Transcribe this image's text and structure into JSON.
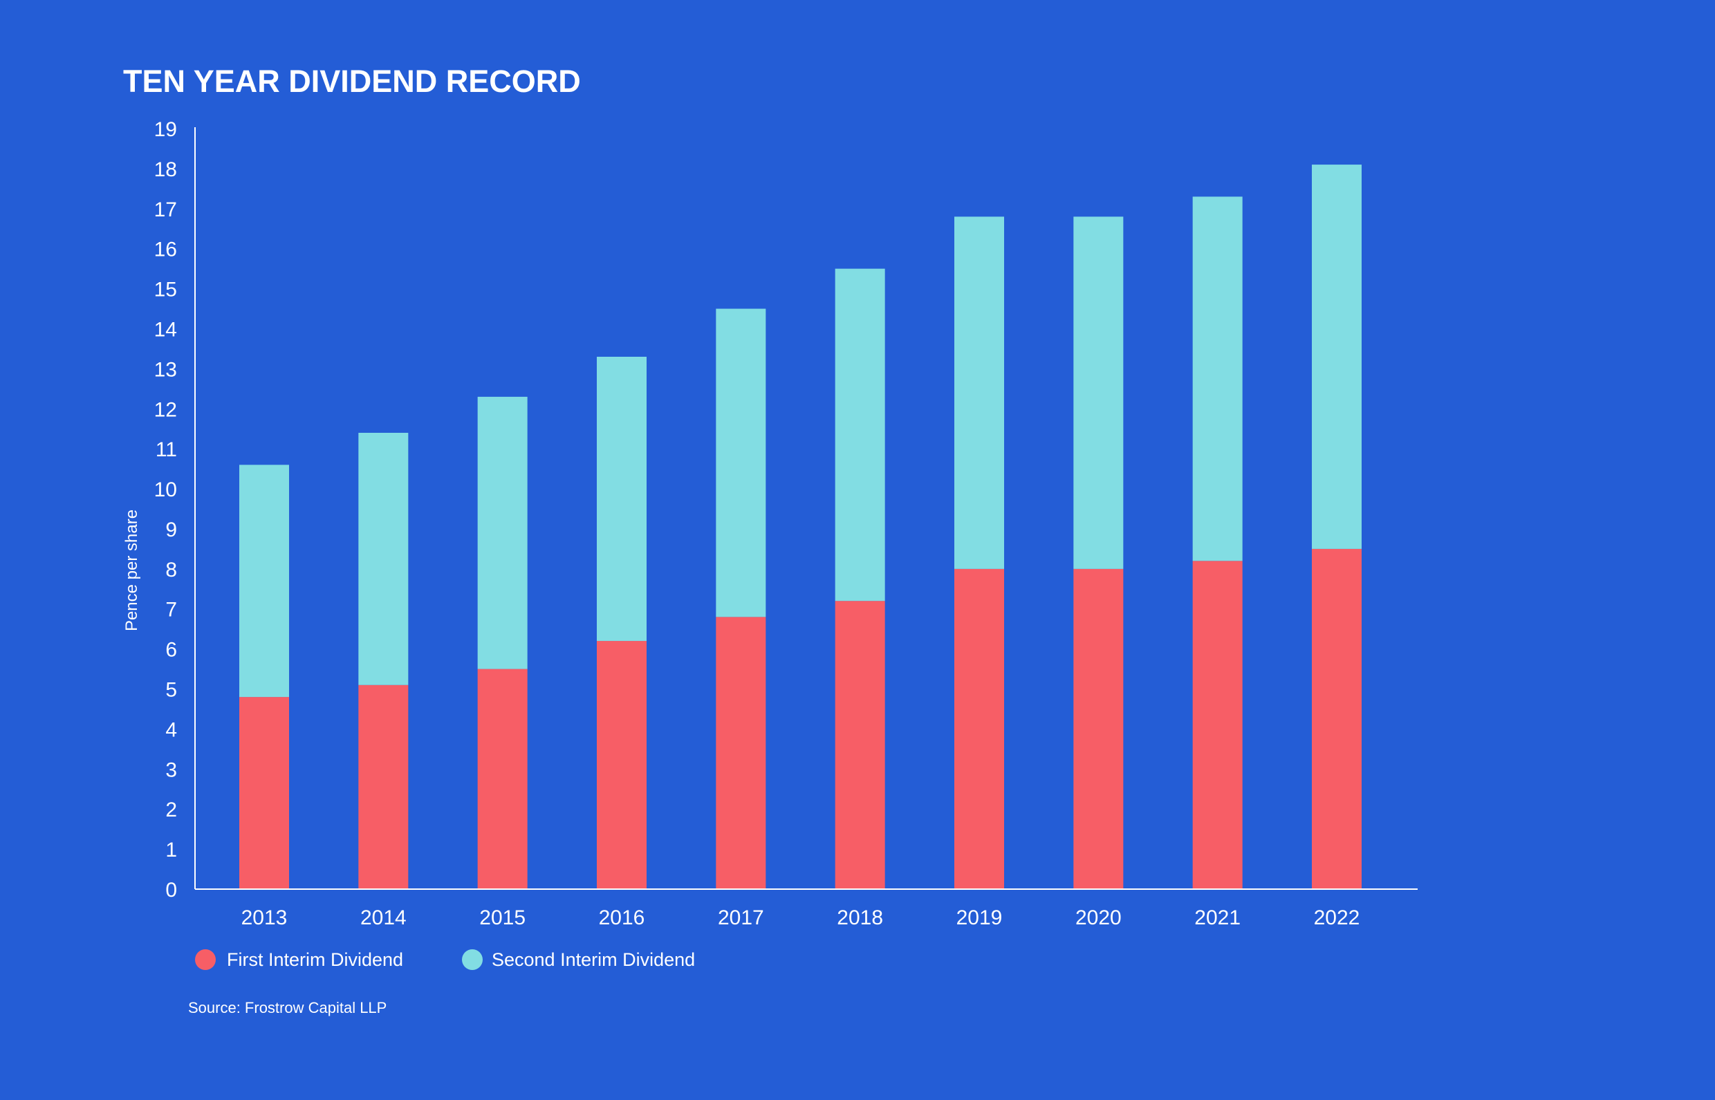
{
  "chart_data": {
    "type": "bar",
    "stacked": true,
    "title": "TEN YEAR DIVIDEND RECORD",
    "ylabel": "Pence per share",
    "xlabel": "",
    "ylim": [
      0,
      19
    ],
    "y_ticks": [
      "0",
      "1",
      "2",
      "3",
      "4",
      "5",
      "6",
      "7",
      "8",
      "9",
      "10",
      "11",
      "12",
      "13",
      "14",
      "15",
      "16",
      "17",
      "18",
      "19"
    ],
    "categories": [
      "2013",
      "2014",
      "2015",
      "2016",
      "2017",
      "2018",
      "2019",
      "2020",
      "2021",
      "2022"
    ],
    "series": [
      {
        "name": "First Interim Dividend",
        "color": "#f75e66",
        "values": [
          4.8,
          5.1,
          5.5,
          6.2,
          6.8,
          7.2,
          8.0,
          8.0,
          8.2,
          8.5
        ]
      },
      {
        "name": "Second Interim Dividend",
        "color": "#82dde3",
        "values": [
          5.8,
          6.3,
          6.8,
          7.1,
          7.7,
          8.3,
          8.8,
          8.8,
          9.1,
          9.6
        ]
      }
    ],
    "legend_position": "bottom-left",
    "grid": false
  },
  "source": "Source: Frostrow Capital LLP",
  "colors": {
    "background": "#245dd6",
    "axis": "#ffffff"
  }
}
